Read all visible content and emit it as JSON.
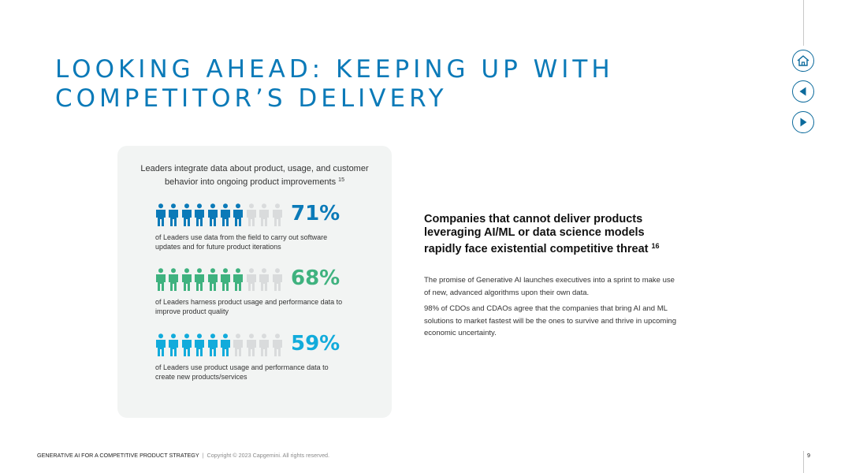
{
  "title": "LOOKING AHEAD: KEEPING UP WITH COMPETITOR’S DELIVERY",
  "nav": {
    "home_icon": "home-icon",
    "prev_icon": "triangle-left-icon",
    "next_icon": "triangle-right-icon"
  },
  "card": {
    "intro": "Leaders integrate data about product, usage, and customer behavior into ongoing product improvements",
    "intro_ref": "15",
    "stats": [
      {
        "percent": "71%",
        "filled": 7,
        "total": 10,
        "color": "#0b7ab8",
        "description": "of Leaders use data from the field to carry out software updates and for future product iterations"
      },
      {
        "percent": "68%",
        "filled": 7,
        "total": 10,
        "color": "#3fb27f",
        "description": "of Leaders harness product usage and performance data to improve product quality"
      },
      {
        "percent": "59%",
        "filled": 6,
        "total": 10,
        "color": "#12abdb",
        "description": "of Leaders use product usage and performance data to create new products/services"
      }
    ],
    "empty_color": "#d9dbdc"
  },
  "right": {
    "heading": "Companies that cannot deliver products leveraging AI/ML or data science models rapidly face existential competitive threat",
    "heading_ref": "16",
    "para1": "The promise of Generative AI launches executives into a sprint to make use of new, advanced algorithms upon their own data.",
    "para2": "98% of CDOs and CDAOs agree that the companies that bring AI and ML solutions to market fastest will be the ones to survive and thrive in upcoming economic uncertainty."
  },
  "footer": {
    "doc_title": "GENERATIVE AI FOR A COMPETITIVE PRODUCT STRATEGY",
    "separator": "|",
    "copyright": "Copyright © 2023 Capgemini.  All rights reserved.",
    "page": "9"
  },
  "colors": {
    "title": "#0b7ab8",
    "nav_stroke": "#0b6a9c",
    "card_bg": "#f2f4f3"
  }
}
